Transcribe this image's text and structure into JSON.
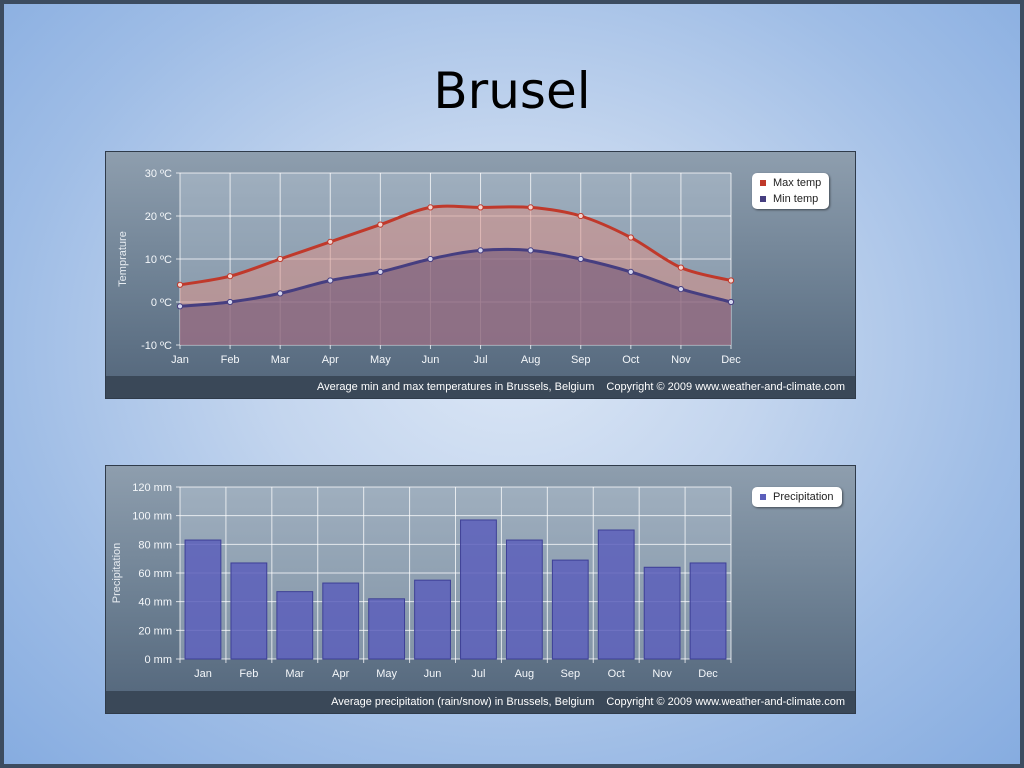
{
  "slide": {
    "title": "Brusel"
  },
  "colors": {
    "max_line": "#c0392b",
    "min_line": "#463e80",
    "max_fill": "#d98f87",
    "min_fill": "#75587a",
    "bar": "#5c5fbb",
    "grid": "#ffffff"
  },
  "temp_chart": {
    "legend": [
      "Max temp",
      "Min temp"
    ],
    "footer_caption": "Average min and max temperatures in Brussels, Belgium",
    "copyright": "Copyright © 2009 www.weather-and-climate.com"
  },
  "precip_chart": {
    "legend": [
      "Precipitation"
    ],
    "footer_caption": "Average precipitation (rain/snow) in Brussels, Belgium",
    "copyright": "Copyright © 2009 www.weather-and-climate.com"
  },
  "chart_data": [
    {
      "type": "area",
      "categories": [
        "Jan",
        "Feb",
        "Mar",
        "Apr",
        "May",
        "Jun",
        "Jul",
        "Aug",
        "Sep",
        "Oct",
        "Nov",
        "Dec"
      ],
      "series": [
        {
          "name": "Max temp",
          "values": [
            4,
            6,
            10,
            14,
            18,
            22,
            22,
            22,
            20,
            15,
            8,
            5
          ]
        },
        {
          "name": "Min temp",
          "values": [
            -1,
            0,
            2,
            5,
            7,
            10,
            12,
            12,
            10,
            7,
            3,
            0
          ]
        }
      ],
      "ylabel": "Temprature",
      "ylim": [
        -10,
        30
      ],
      "yticks": [
        -10,
        0,
        10,
        20,
        30
      ],
      "ytick_labels": [
        "-10 ºC",
        "0 ºC",
        "10 ºC",
        "20 ºC",
        "30 ºC"
      ],
      "grid": true,
      "legend_position": "top-right"
    },
    {
      "type": "bar",
      "categories": [
        "Jan",
        "Feb",
        "Mar",
        "Apr",
        "May",
        "Jun",
        "Jul",
        "Aug",
        "Sep",
        "Oct",
        "Nov",
        "Dec"
      ],
      "series": [
        {
          "name": "Precipitation",
          "values": [
            83,
            67,
            47,
            53,
            42,
            55,
            97,
            83,
            69,
            90,
            64,
            67
          ]
        }
      ],
      "ylabel": "Precipitation",
      "ylim": [
        0,
        120
      ],
      "yticks": [
        0,
        20,
        40,
        60,
        80,
        100,
        120
      ],
      "ytick_labels": [
        "0 mm",
        "20 mm",
        "40 mm",
        "60 mm",
        "80 mm",
        "100 mm",
        "120 mm"
      ],
      "grid": true,
      "legend_position": "top-right"
    }
  ]
}
